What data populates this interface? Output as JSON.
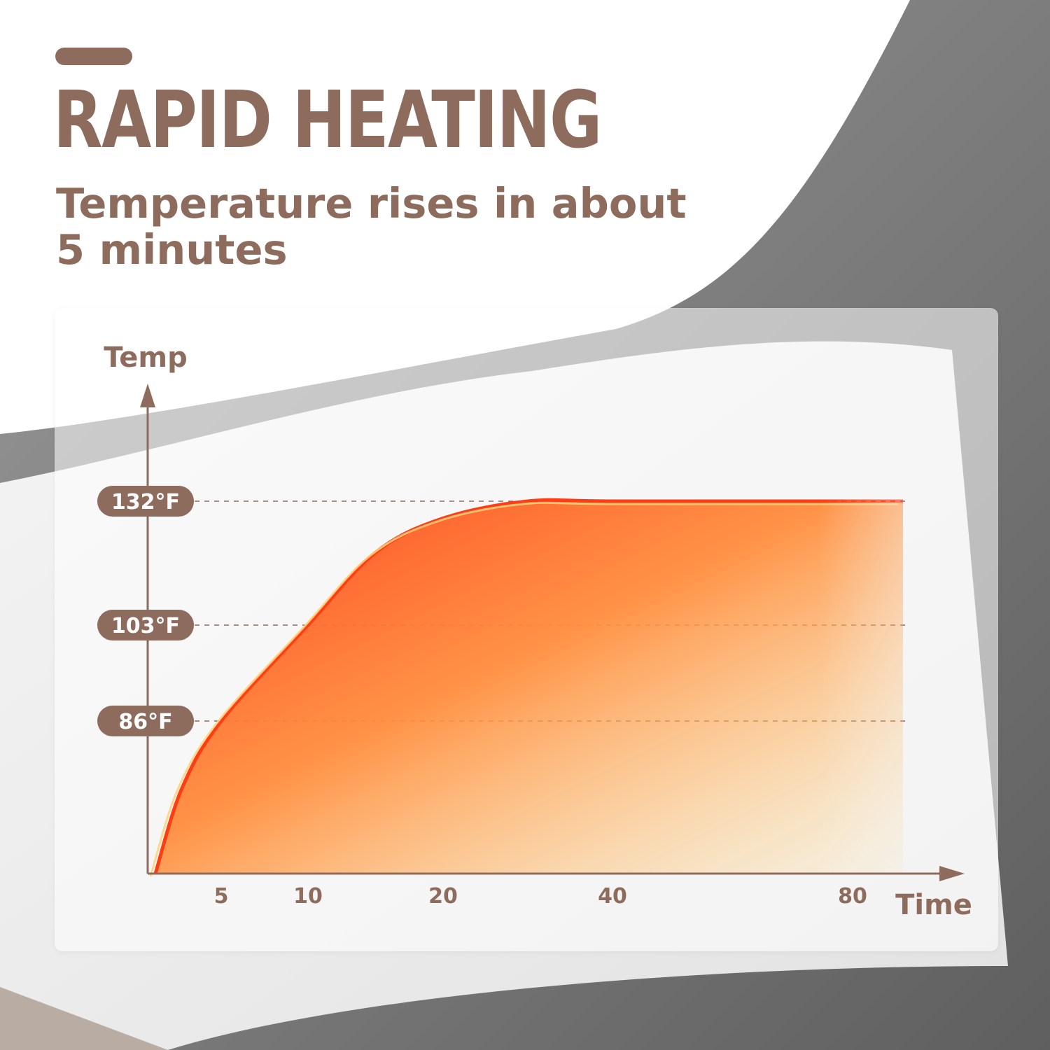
{
  "header": {
    "title": "RAPID HEATING",
    "subtitle": "Temperature rises in about 5 minutes"
  },
  "colors": {
    "brand": "#8d6c5e",
    "curve_start": "#ff3c14",
    "curve_mid": "#ff8c3c",
    "curve_end": "#ffd47a"
  },
  "chart_data": {
    "type": "area",
    "ylabel": "Temp",
    "xlabel": "Time",
    "x_ticks": [
      5,
      10,
      20,
      40,
      80
    ],
    "y_ticks": [
      {
        "value": 86,
        "label": "86°F"
      },
      {
        "value": 103,
        "label": "103°F"
      },
      {
        "value": 132,
        "label": "132°F"
      }
    ],
    "grid": "dashed lines at y tick values",
    "series": [
      {
        "points": [
          {
            "x": 0,
            "y": 50
          },
          {
            "x": 2,
            "y": 70
          },
          {
            "x": 5,
            "y": 86
          },
          {
            "x": 10,
            "y": 103
          },
          {
            "x": 15,
            "y": 120
          },
          {
            "x": 20,
            "y": 128
          },
          {
            "x": 30,
            "y": 132
          },
          {
            "x": 40,
            "y": 132
          },
          {
            "x": 80,
            "y": 132
          }
        ]
      }
    ]
  }
}
